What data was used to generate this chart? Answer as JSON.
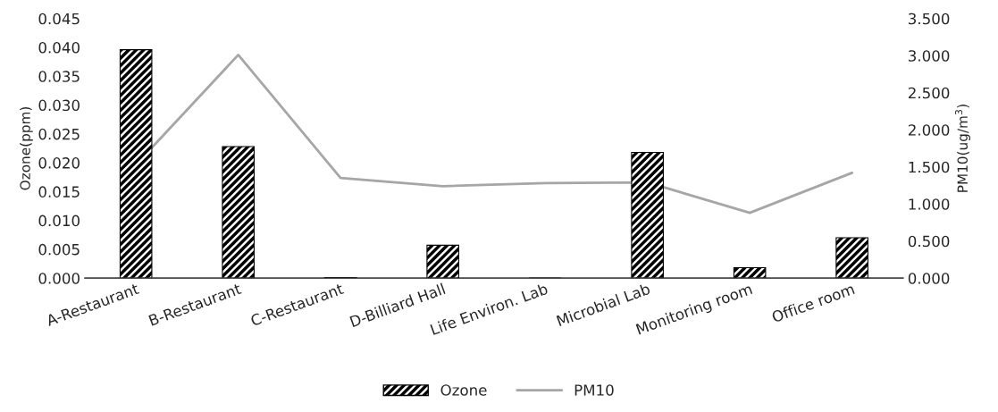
{
  "chart_data": {
    "type": "bar",
    "ylabel": "Ozone(ppm)",
    "y2label": "PM10(ug/m$^{3}$)",
    "categories": [
      "A-Restaurant",
      "B-Restaurant",
      "C-Restaurant",
      "D-Billiard Hall",
      "Life Environ. Lab",
      "Microbial Lab",
      "Monitoring room",
      "Office room"
    ],
    "series": [
      {
        "name": "Ozone",
        "color": "#000000",
        "values": [
          0.0396,
          0.0228,
          0.0001,
          0.0057,
          0,
          0.0218,
          0.0018,
          0.007
        ]
      },
      {
        "name": "PM10",
        "type": "line",
        "axis": "y2",
        "color": "#a6a6a6",
        "values": [
          1.53,
          3.01,
          1.35,
          1.24,
          1.28,
          1.29,
          0.88,
          1.42
        ]
      }
    ],
    "ylim": [
      0,
      0.045
    ],
    "yticks": [
      {
        "value": 0,
        "label": "0.000"
      },
      {
        "value": 0.005,
        "label": "0.005"
      },
      {
        "value": 0.01,
        "label": "0.010"
      },
      {
        "value": 0.015,
        "label": "0.015"
      },
      {
        "value": 0.02,
        "label": "0.020"
      },
      {
        "value": 0.025,
        "label": "0.025"
      },
      {
        "value": 0.03,
        "label": "0.030"
      },
      {
        "value": 0.035,
        "label": "0.035"
      },
      {
        "value": 0.04,
        "label": "0.040"
      },
      {
        "value": 0.045,
        "label": "0.045"
      }
    ],
    "y2lim": [
      0,
      3.5
    ],
    "y2ticks": [
      {
        "value": 0,
        "label": "0.000"
      },
      {
        "value": 0.5,
        "label": "0.500"
      },
      {
        "value": 1,
        "label": "1.000"
      },
      {
        "value": 1.5,
        "label": "1.500"
      },
      {
        "value": 2,
        "label": "2.000"
      },
      {
        "value": 2.5,
        "label": "2.500"
      },
      {
        "value": 3,
        "label": "3.000"
      },
      {
        "value": 3.5,
        "label": "3.500"
      }
    ],
    "grid": false,
    "legend": "bottom"
  }
}
